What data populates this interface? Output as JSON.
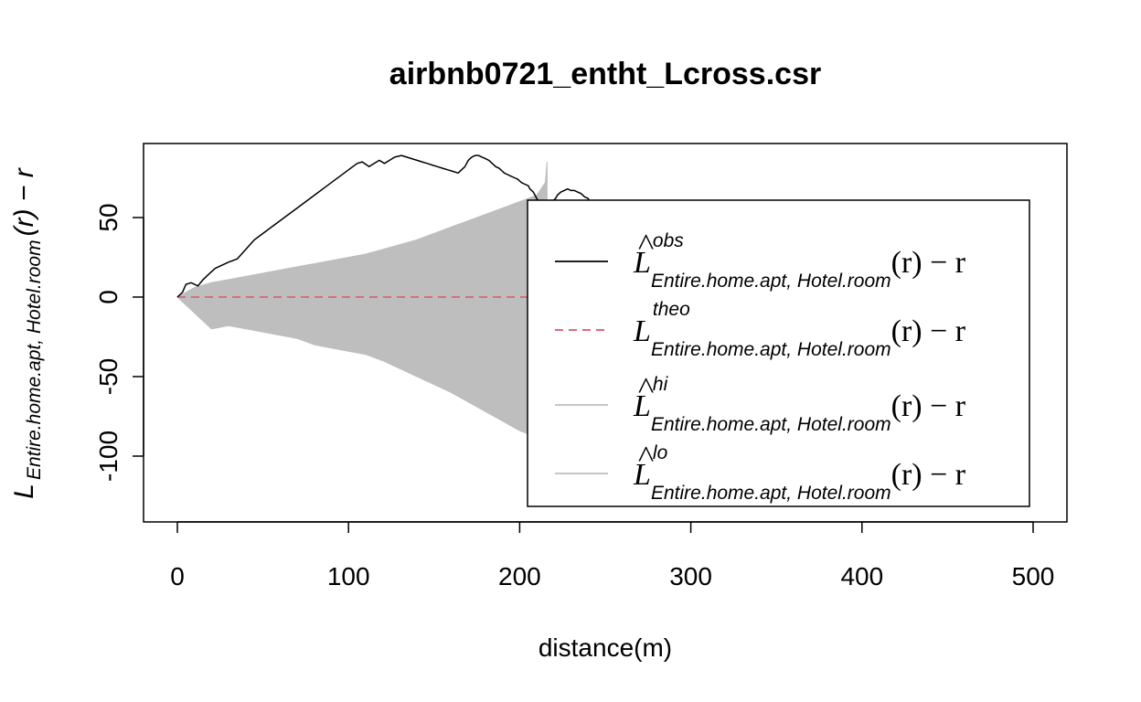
{
  "chart_data": {
    "type": "line",
    "title": "airbnb0721_entht_Lcross.csr",
    "xlabel": "distance(m)",
    "ylabel": {
      "main": "L",
      "subscript": "Entire.home.apt, Hotel.room",
      "suffix": "(r) − r"
    },
    "xlim": [
      0,
      500
    ],
    "ylim": [
      -130,
      90
    ],
    "x_ticks": [
      0,
      100,
      200,
      300,
      400,
      500
    ],
    "y_ticks": [
      -100,
      -50,
      0,
      50
    ],
    "y_tick_labels": [
      "-100",
      "-50",
      "0",
      "50"
    ],
    "grid": false,
    "legend_position": "right",
    "series": [
      {
        "name": "obs",
        "kind": "line",
        "color": "#000000",
        "dash": "solid",
        "points": [
          [
            0,
            0
          ],
          [
            3,
            3
          ],
          [
            5,
            8
          ],
          [
            8,
            9
          ],
          [
            12,
            7
          ],
          [
            15,
            11
          ],
          [
            18,
            14
          ],
          [
            22,
            18
          ],
          [
            26,
            20
          ],
          [
            30,
            22
          ],
          [
            35,
            24
          ],
          [
            40,
            30
          ],
          [
            45,
            36
          ],
          [
            50,
            40
          ],
          [
            55,
            44
          ],
          [
            60,
            48
          ],
          [
            65,
            52
          ],
          [
            70,
            56
          ],
          [
            75,
            60
          ],
          [
            80,
            64
          ],
          [
            85,
            68
          ],
          [
            90,
            72
          ],
          [
            95,
            76
          ],
          [
            100,
            80
          ],
          [
            105,
            84
          ],
          [
            108,
            85
          ],
          [
            112,
            82
          ],
          [
            115,
            84
          ],
          [
            118,
            86
          ],
          [
            121,
            84
          ],
          [
            124,
            86
          ],
          [
            127,
            88
          ],
          [
            131,
            89
          ],
          [
            134,
            88
          ],
          [
            137,
            87
          ],
          [
            140,
            86
          ],
          [
            143,
            85
          ],
          [
            146,
            84
          ],
          [
            149,
            83
          ],
          [
            152,
            82
          ],
          [
            155,
            81
          ],
          [
            158,
            80
          ],
          [
            161,
            79
          ],
          [
            164,
            78
          ],
          [
            166,
            80
          ],
          [
            168,
            82
          ],
          [
            169,
            84
          ],
          [
            170,
            86
          ],
          [
            171,
            87
          ],
          [
            172,
            88
          ],
          [
            174,
            89
          ],
          [
            176,
            89
          ],
          [
            178,
            88
          ],
          [
            180,
            87
          ],
          [
            182,
            86
          ],
          [
            183,
            85
          ],
          [
            184,
            84
          ],
          [
            186,
            82
          ],
          [
            188,
            81
          ],
          [
            189,
            80
          ],
          [
            190,
            79
          ],
          [
            191,
            78
          ],
          [
            193,
            77
          ],
          [
            195,
            76
          ],
          [
            197,
            75
          ],
          [
            199,
            74
          ],
          [
            200,
            73
          ],
          [
            201,
            72
          ],
          [
            203,
            71
          ],
          [
            205,
            70
          ],
          [
            206,
            68
          ],
          [
            208,
            66
          ],
          [
            209,
            64
          ],
          [
            210,
            62
          ],
          [
            211,
            60
          ],
          [
            213,
            59
          ],
          [
            215,
            59
          ],
          [
            217,
            59
          ],
          [
            219,
            60
          ],
          [
            221,
            62
          ],
          [
            222,
            64
          ],
          [
            224,
            66
          ],
          [
            226,
            67
          ],
          [
            228,
            68
          ],
          [
            230,
            67
          ],
          [
            232,
            67
          ],
          [
            234,
            66
          ],
          [
            236,
            65
          ],
          [
            238,
            63
          ],
          [
            240,
            62
          ],
          [
            241,
            60
          ],
          [
            242,
            55
          ],
          [
            243,
            50
          ],
          [
            244,
            40
          ],
          [
            245,
            30
          ],
          [
            246,
            20
          ],
          [
            247,
            10
          ],
          [
            248,
            0
          ],
          [
            249,
            -20
          ],
          [
            250,
            -40
          ],
          [
            252,
            -60
          ],
          [
            254,
            -70
          ],
          [
            255,
            -80
          ],
          [
            256,
            -90
          ],
          [
            258,
            -100
          ],
          [
            260,
            -108
          ],
          [
            263,
            -112
          ],
          [
            266,
            -116
          ],
          [
            268,
            -112
          ],
          [
            270,
            -106
          ],
          [
            272,
            -100
          ],
          [
            275,
            -98
          ],
          [
            278,
            -102
          ],
          [
            280,
            -96
          ],
          [
            283,
            -100
          ],
          [
            285,
            -90
          ],
          [
            288,
            -94
          ],
          [
            290,
            -86
          ],
          [
            293,
            -90
          ],
          [
            295,
            -80
          ],
          [
            298,
            -84
          ],
          [
            300,
            -74
          ],
          [
            302,
            -68
          ],
          [
            304,
            -72
          ],
          [
            306,
            -70
          ],
          [
            308,
            -76
          ],
          [
            310,
            -74
          ],
          [
            312,
            -108
          ],
          [
            315,
            -112
          ],
          [
            318,
            -116
          ],
          [
            321,
            -120
          ],
          [
            324,
            -124
          ],
          [
            327,
            -128
          ],
          [
            330,
            -130
          ],
          [
            333,
            -126
          ],
          [
            335,
            -124
          ],
          [
            338,
            -120
          ],
          [
            340,
            -118
          ],
          [
            342,
            -130
          ],
          [
            345,
            -100
          ],
          [
            348,
            -106
          ],
          [
            350,
            -104
          ],
          [
            352,
            -86
          ],
          [
            356,
            -90
          ],
          [
            360,
            -94
          ],
          [
            365,
            -98
          ],
          [
            370,
            -102
          ],
          [
            375,
            -106
          ]
        ]
      },
      {
        "name": "theo",
        "kind": "line",
        "color": "#df536b",
        "dash": "dashed",
        "points": [
          [
            0,
            0
          ],
          [
            420,
            0
          ]
        ]
      },
      {
        "name": "hi",
        "kind": "envelope_upper",
        "color": "#bebebe",
        "points": [
          [
            0,
            0
          ],
          [
            10,
            6
          ],
          [
            20,
            9
          ],
          [
            30,
            11
          ],
          [
            40,
            13
          ],
          [
            50,
            15
          ],
          [
            60,
            17
          ],
          [
            70,
            19
          ],
          [
            80,
            21
          ],
          [
            90,
            23
          ],
          [
            100,
            25
          ],
          [
            110,
            27
          ],
          [
            120,
            30
          ],
          [
            130,
            33
          ],
          [
            140,
            36
          ],
          [
            150,
            40
          ],
          [
            160,
            44
          ],
          [
            170,
            48
          ],
          [
            180,
            52
          ],
          [
            190,
            56
          ],
          [
            200,
            60
          ],
          [
            210,
            64
          ],
          [
            215,
            72
          ],
          [
            216,
            85
          ]
        ]
      },
      {
        "name": "lo",
        "kind": "envelope_lower",
        "color": "#bebebe",
        "points": [
          [
            0,
            0
          ],
          [
            10,
            -10
          ],
          [
            20,
            -20
          ],
          [
            30,
            -18
          ],
          [
            40,
            -20
          ],
          [
            50,
            -22
          ],
          [
            60,
            -24
          ],
          [
            70,
            -26
          ],
          [
            80,
            -30
          ],
          [
            90,
            -32
          ],
          [
            100,
            -34
          ],
          [
            110,
            -36
          ],
          [
            120,
            -40
          ],
          [
            130,
            -45
          ],
          [
            140,
            -50
          ],
          [
            150,
            -55
          ],
          [
            160,
            -60
          ],
          [
            170,
            -66
          ],
          [
            180,
            -72
          ],
          [
            190,
            -78
          ],
          [
            200,
            -84
          ],
          [
            210,
            -88
          ],
          [
            215,
            -93
          ],
          [
            216,
            -95
          ]
        ]
      }
    ],
    "legend": [
      {
        "key": "obs",
        "main": "L",
        "hat": "˄",
        "superscript": "obs",
        "subscript": "Entire.home.apt, Hotel.room",
        "suffix": "(r) − r",
        "color": "#000000",
        "dash": "solid"
      },
      {
        "key": "theo",
        "main": "L",
        "hat": "",
        "superscript": "theo",
        "subscript": "Entire.home.apt, Hotel.room",
        "suffix": "(r) − r",
        "color": "#df536b",
        "dash": "dashed"
      },
      {
        "key": "hi",
        "main": "L",
        "hat": "˄",
        "superscript": "hi",
        "subscript": "Entire.home.apt, Hotel.room",
        "suffix": "(r) − r",
        "color": "#bebebe",
        "dash": "solid"
      },
      {
        "key": "lo",
        "main": "L",
        "hat": "˄",
        "superscript": "lo",
        "subscript": "Entire.home.apt, Hotel.room",
        "suffix": "(r) − r",
        "color": "#bebebe",
        "dash": "solid"
      }
    ]
  }
}
